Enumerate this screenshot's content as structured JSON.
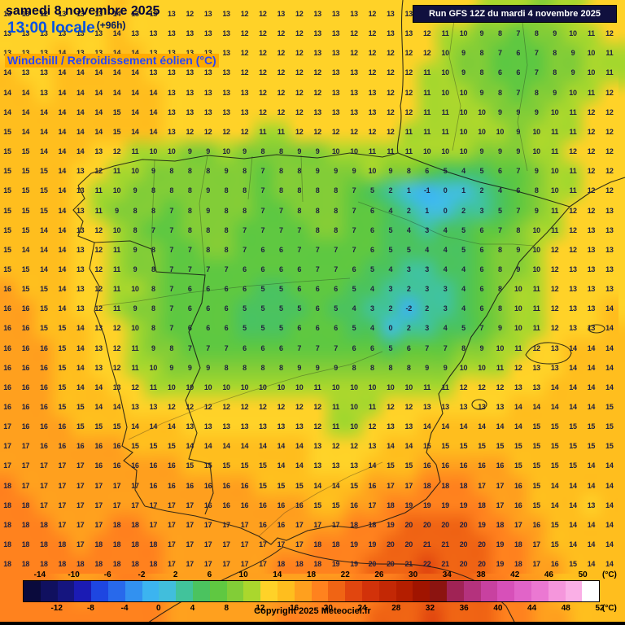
{
  "header": {
    "date_line": "samedi 8 novembre 2025",
    "time_line": "13:00 locale",
    "forecast_offset": "(+96h)",
    "variable_label": "Windchill / Refroidissement éolien (°C)",
    "run_info": "Run GFS 12Z du mardi 4 novembre 2025"
  },
  "footer": {
    "copyright": "Copyright 2025 Meteociel.fr"
  },
  "scale": {
    "unit_label": "(°C)",
    "min": -16,
    "max": 52,
    "step": 2,
    "colors": [
      "#0A0A3C",
      "#10105F",
      "#15157F",
      "#1B1BB4",
      "#1E46E1",
      "#2869EB",
      "#3291F0",
      "#3CB4F0",
      "#41BEDC",
      "#41C39B",
      "#4BC35F",
      "#5FC841",
      "#82CD37",
      "#AAD72D",
      "#FFD228",
      "#FFBE1E",
      "#FFA01E",
      "#FF821E",
      "#F06414",
      "#E1460F",
      "#D2320A",
      "#C32805",
      "#B41E00",
      "#A01400",
      "#8C1410",
      "#A02355",
      "#B4327D",
      "#C841A0",
      "#D750B9",
      "#E164C8",
      "#EB78D2",
      "#F596DC",
      "#FAAFE6",
      "#FFFFFF"
    ],
    "top_labels": [
      "-14",
      "-10",
      "-6",
      "-2",
      "2",
      "6",
      "10",
      "14",
      "18",
      "22",
      "26",
      "30",
      "34",
      "38",
      "42",
      "46",
      "50"
    ],
    "bottom_labels": [
      "-12",
      "-8",
      "-4",
      "0",
      "4",
      "8",
      "12",
      "16",
      "20",
      "24",
      "28",
      "32",
      "36",
      "40",
      "44",
      "48",
      "52"
    ]
  },
  "map": {
    "number_color": "#20203F",
    "grid": [
      "13 13 12 13 13 13 14 13 13 13 12 13 13 12 12 13 12 13 13 13 12 13 13 12 12 12 11 11 10 9 10 11 12 12",
      "13 13 13 13 13 13 14 13 13 13 13 13 13 12 12 12 12 13 13 12 12 13 13 12 11 10 9 8 7 8 9 10 11 12",
      "13 13 13 14 13 13 14 14 13 13 13 13 13 12 12 12 12 13 13 12 12 12 12 12 10 9 8 7 6 7 8 9 10 11",
      "14 13 13 14 14 14 14 14 13 13 13 13 13 12 12 12 12 12 13 13 12 12 12 11 10 9 8 6 6 7 8 9 10 11",
      "14 14 13 14 14 14 14 14 14 13 13 13 13 13 12 12 12 12 13 13 13 12 12 11 10 10 9 8 7 8 9 10 11 12",
      "14 14 14 14 14 14 15 14 14 13 13 13 13 13 12 12 12 13 13 13 13 12 12 11 11 10 10 9 9 9 10 11 12 12",
      "15 14 14 14 14 14 15 14 14 13 12 12 12 12 11 11 12 12 12 12 12 12 11 11 11 10 10 10 9 10 11 11 12 12",
      "15 15 14 14 14 13 12 11 10 10 9 9 10 9 8 8 9 9 10 10 11 11 11 10 10 10 9 9 9 10 11 12 12 12",
      "15 15 15 14 13 12 11 10 9 8 8 8 9 8 7 8 8 9 9 9 10 9 8 6 5 4 5 6 7 9 10 11 12 12",
      "15 15 15 14 13 11 10 9 8 8 8 9 8 8 7 8 8 8 8 7 5 2 1 -1 0 1 2 4 6 8 10 11 12 12",
      "15 15 15 14 13 11 9 8 8 7 8 9 8 8 7 7 8 8 8 7 6 4 2 1 0 2 3 5 7 9 11 12 12 13",
      "15 15 14 14 13 12 10 8 7 7 8 8 8 7 7 7 7 8 8 7 6 5 4 3 4 5 6 7 8 10 11 12 13 13",
      "15 14 14 14 13 12 11 9 8 7 7 8 8 7 6 6 7 7 7 7 6 5 5 4 4 5 6 8 9 10 12 12 13 13",
      "15 15 14 14 13 12 11 9 8 7 7 7 7 6 6 6 6 7 7 6 5 4 3 3 4 4 6 8 9 10 12 13 13 13",
      "16 15 15 14 13 12 11 10 8 7 6 6 6 6 5 5 6 6 6 5 4 3 2 3 3 4 6 8 10 11 12 13 13 13",
      "16 16 15 14 13 12 11 9 8 7 6 6 6 5 5 5 5 6 5 4 3 2 -2 2 3 4 6 8 10 11 12 13 13 14",
      "16 16 15 15 14 13 12 10 8 7 6 6 6 5 5 5 6 6 6 5 4 0 2 3 4 5 7 9 10 11 12 13 13 14",
      "16 16 16 15 14 13 12 11 9 8 7 7 7 6 6 6 7 7 7 6 6 5 6 7 7 8 9 10 11 12 13 14 14 14",
      "16 16 16 15 14 13 12 11 10 9 9 9 8 8 8 8 9 9 9 8 8 8 8 9 9 10 10 11 12 13 13 14 14 14",
      "16 16 16 15 14 14 13 12 11 10 10 10 10 10 10 10 10 11 10 10 10 10 10 11 11 12 12 12 13 13 14 14 14 14",
      "16 16 16 15 15 14 14 13 13 12 12 12 12 12 12 12 12 12 11 10 11 12 12 13 13 13 13 13 14 14 14 14 14 15",
      "17 16 16 16 15 15 15 14 14 14 13 13 13 13 13 13 13 12 11 10 12 13 13 14 14 14 14 14 14 15 15 15 15 15",
      "17 17 16 16 16 16 16 15 15 15 14 14 14 14 14 14 14 13 12 12 13 14 14 15 15 15 15 15 15 15 15 15 15 15",
      "17 17 17 17 17 16 16 16 16 16 15 15 15 15 15 14 14 13 13 13 14 15 15 16 16 16 16 16 15 15 15 15 14 14",
      "18 17 17 17 17 17 17 17 16 16 16 16 16 16 15 15 15 14 14 15 16 17 17 18 18 18 17 17 16 15 14 14 14 14",
      "18 18 17 17 17 17 17 17 17 17 17 16 16 16 16 16 16 15 15 16 17 18 19 19 19 19 18 17 16 15 14 14 13 14",
      "18 18 18 17 17 17 18 18 17 17 17 17 17 17 16 16 17 17 17 18 18 19 20 20 20 20 19 18 17 16 15 14 14 14",
      "18 18 18 18 17 18 18 18 18 17 17 17 17 17 17 17 17 18 18 19 19 20 20 21 21 20 20 19 18 17 15 14 14 14",
      "18 18 18 18 18 18 18 18 18 17 17 17 17 17 17 18 18 18 19 19 20 20 21 22 21 20 20 19 18 17 16 15 14 14"
    ]
  }
}
